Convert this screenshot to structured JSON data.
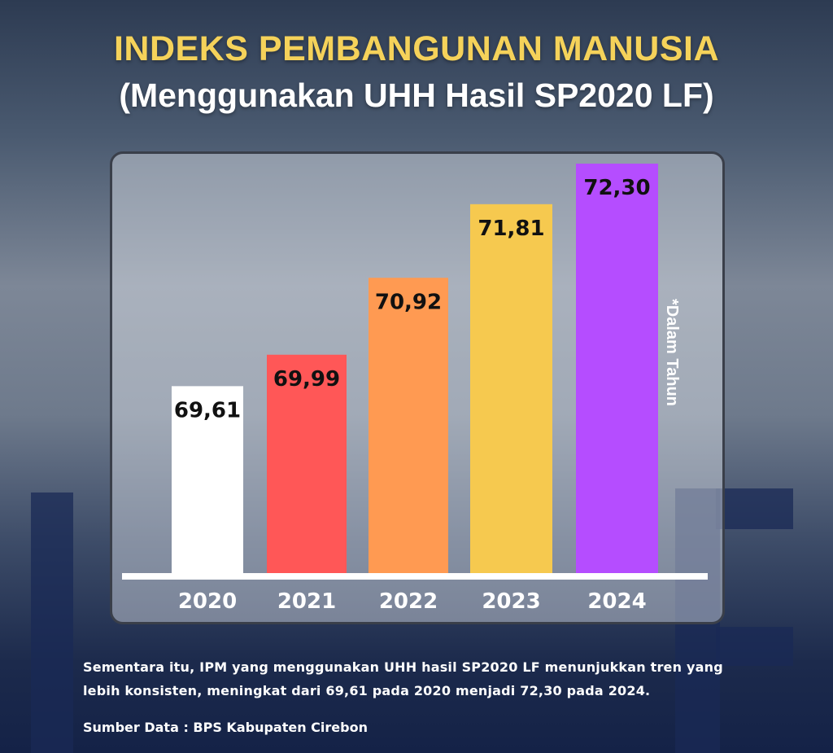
{
  "header": {
    "title": "INDEKS PEMBANGUNAN MANUSIA",
    "subtitle": "(Menggunakan UHH Hasil SP2020 LF)"
  },
  "chart_data": {
    "type": "bar",
    "categories": [
      "2020",
      "2021",
      "2022",
      "2023",
      "2024"
    ],
    "values": [
      69.61,
      69.99,
      70.92,
      71.81,
      72.3
    ],
    "value_labels": [
      "69,61",
      "69,99",
      "70,92",
      "71,81",
      "72,30"
    ],
    "colors": [
      "#ffffff",
      "#ff5757",
      "#ff9a52",
      "#f6c94f",
      "#b54dff"
    ],
    "note": "*Dalam Tahun",
    "grid": false,
    "legend": "none"
  },
  "footer": {
    "description": "Sementara itu, IPM yang menggunakan UHH hasil SP2020 LF menunjukkan tren yang lebih konsisten, meningkat dari 69,61 pada 2020 menjadi 72,30 pada 2024.",
    "source": "Sumber Data : BPS Kabupaten Cirebon"
  }
}
